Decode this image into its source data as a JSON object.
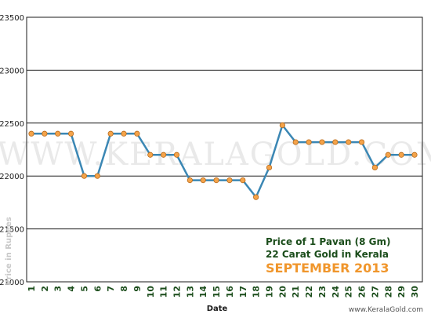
{
  "chart_data": {
    "type": "line",
    "xlabel": "Date",
    "ylabel": "Price in Rupees",
    "ylim": [
      21000,
      23500
    ],
    "yticks": [
      21000,
      21500,
      22000,
      22500,
      23000,
      23500
    ],
    "x": [
      "1",
      "2",
      "3",
      "4",
      "5",
      "6",
      "7",
      "8",
      "9",
      "10",
      "11",
      "12",
      "13",
      "14",
      "15",
      "16",
      "17",
      "18",
      "19",
      "20",
      "21",
      "22",
      "23",
      "24",
      "25",
      "26",
      "27",
      "28",
      "29",
      "30"
    ],
    "series": [
      {
        "values": [
          22400,
          22400,
          22400,
          22400,
          22000,
          22000,
          22400,
          22400,
          22400,
          22200,
          22200,
          22200,
          21960,
          21960,
          21960,
          21960,
          21960,
          21800,
          22080,
          22480,
          22320,
          22320,
          22320,
          22320,
          22320,
          22320,
          22080,
          22200,
          22200,
          22200
        ]
      }
    ],
    "annotation": {
      "line1": "Price of 1 Pavan (8 Gm)",
      "line2": "22 Carat Gold in Kerala",
      "line3": "SEPTEMBER 2013"
    },
    "watermark": "WWW.KERALAGOLD.COM",
    "site_credit": "www.KeralaGold.com",
    "grid": true,
    "colors": {
      "line": "#3b87b4",
      "marker_fill": "#f4a34a",
      "marker_stroke": "#b86a1a",
      "grid": "#1a1a1a",
      "xtick": "#1b4d1b",
      "month": "#f0962c"
    }
  }
}
